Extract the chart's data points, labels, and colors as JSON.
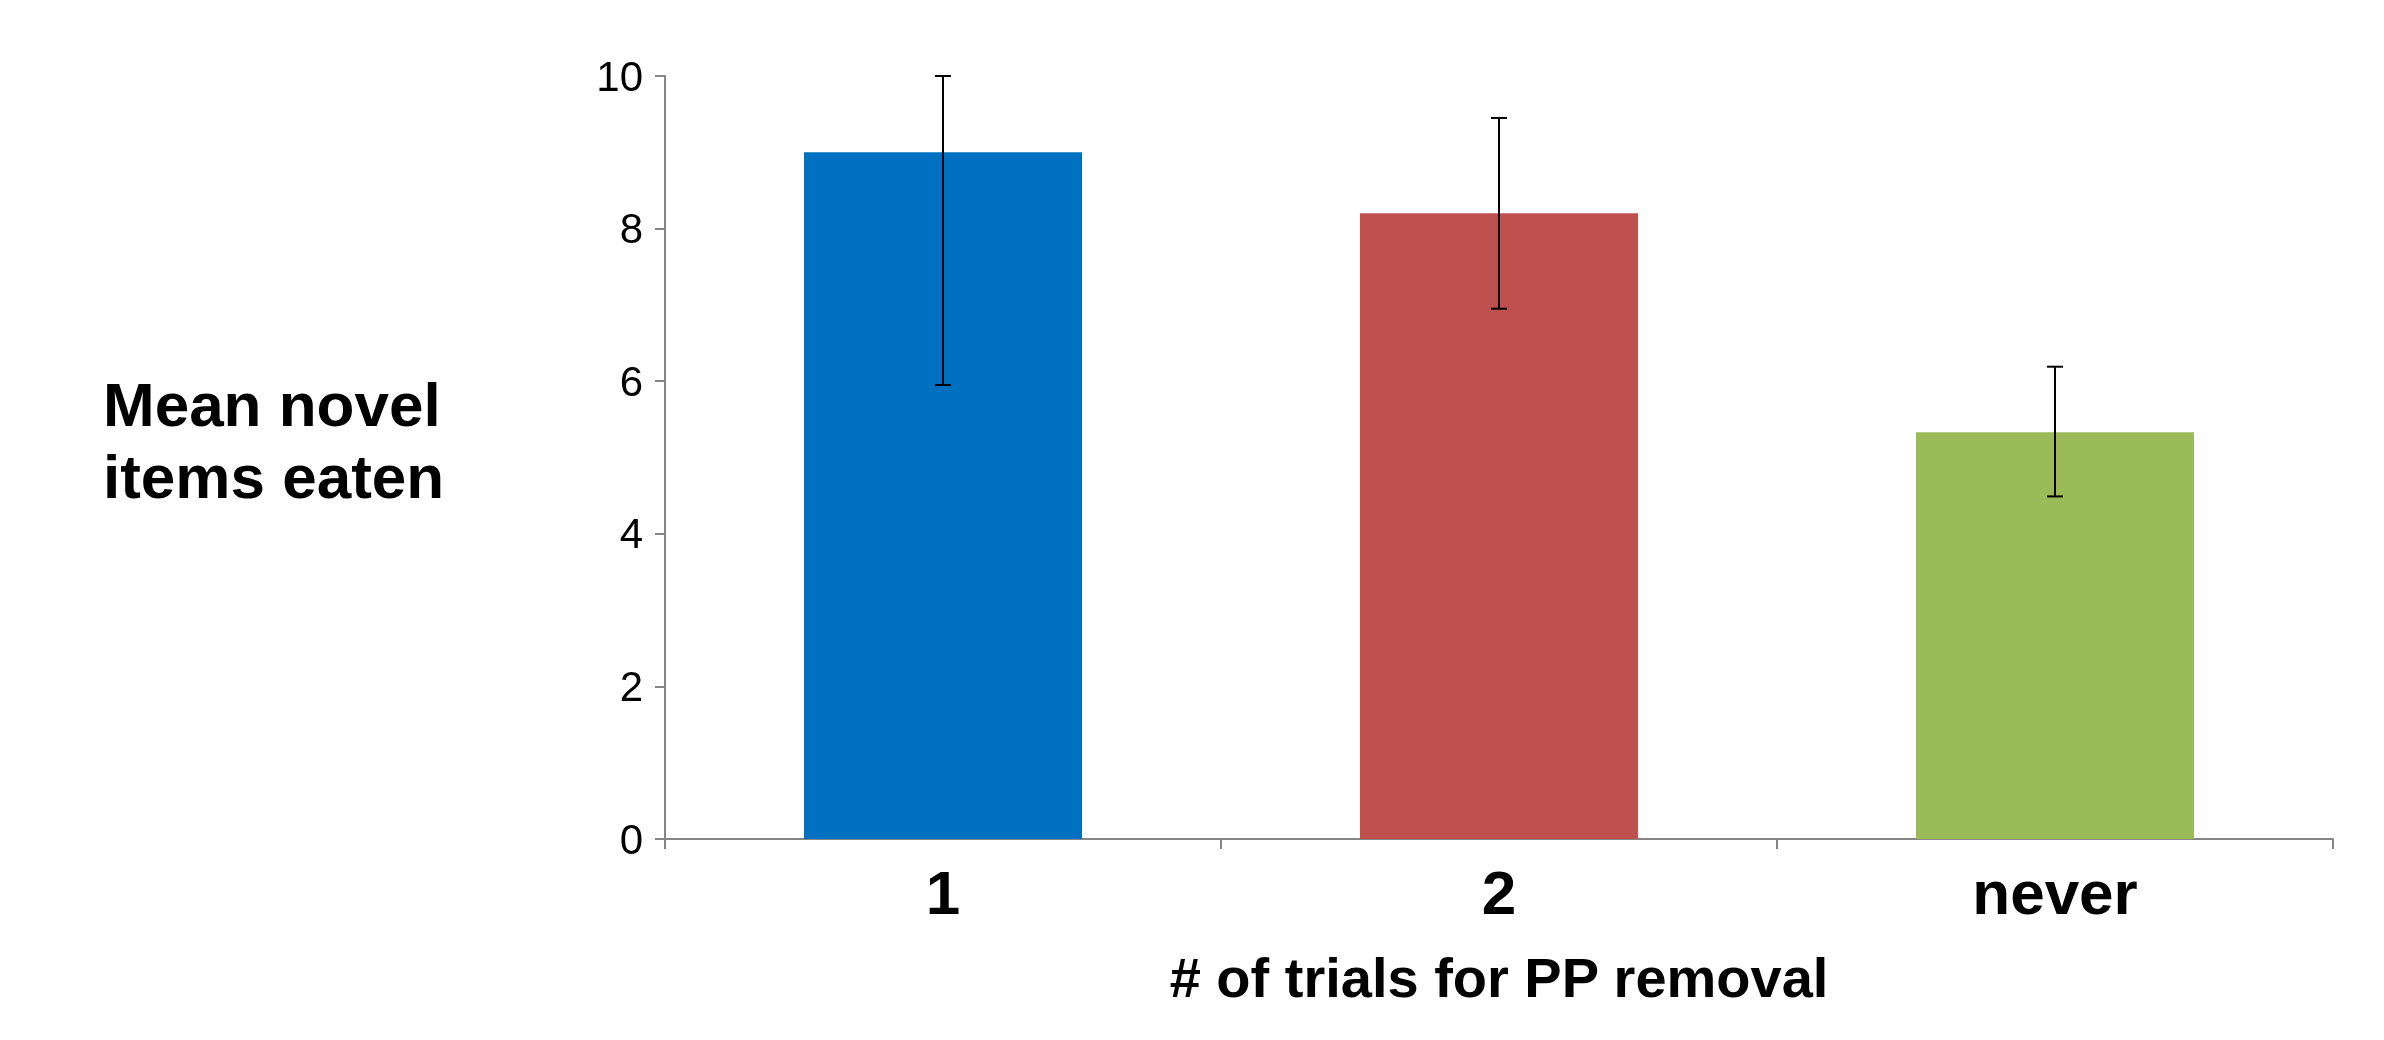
{
  "chart_data": {
    "type": "bar",
    "xlabel": "# of trials for PP removal",
    "ylabel": "Mean novel items eaten",
    "categories": [
      "1",
      "2",
      "never"
    ],
    "values": [
      9.0,
      8.2,
      5.33
    ],
    "colors": [
      "#0070c0",
      "#c0504d",
      "#9bbb59"
    ],
    "errors": [
      [
        5.95,
        10
      ],
      [
        6.95,
        9.45
      ],
      [
        4.49,
        6.19
      ]
    ],
    "ylim": [
      0,
      10
    ],
    "yticks": [
      0,
      2,
      4,
      6,
      8,
      10
    ],
    "grid": false
  }
}
